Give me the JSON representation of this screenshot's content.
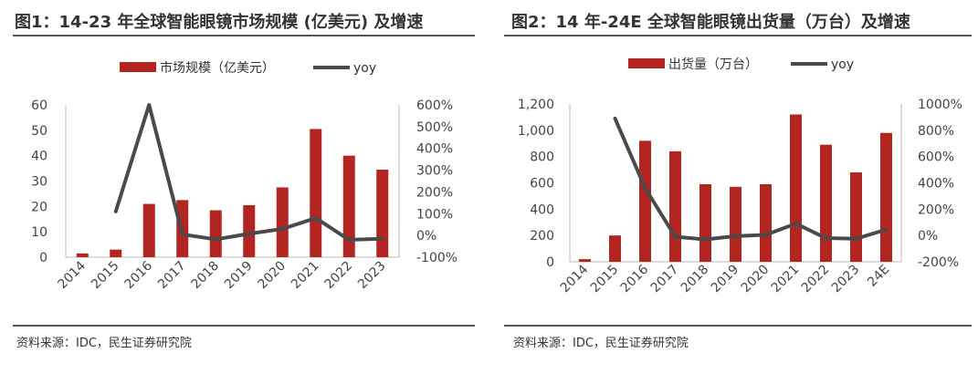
{
  "chart_data": [
    {
      "type": "bar",
      "title": "图1：14-23 年全球智能眼镜市场规模 (亿美元) 及增速",
      "source": "资料来源：IDC，民生证券研究院",
      "categories": [
        "2014",
        "2015",
        "2016",
        "2017",
        "2018",
        "2019",
        "2020",
        "2021",
        "2022",
        "2023"
      ],
      "series": [
        {
          "name": "市场规模（亿美元）",
          "type": "bar",
          "axis": "left",
          "values": [
            1.5,
            3.0,
            21.0,
            22.5,
            18.5,
            20.5,
            27.5,
            50.5,
            40.0,
            34.5
          ]
        },
        {
          "name": "yoy",
          "type": "line",
          "axis": "right",
          "unit": "%",
          "values": [
            null,
            110,
            600,
            5,
            -18,
            8,
            30,
            80,
            -20,
            -15
          ]
        }
      ],
      "ylim_left": [
        0,
        60
      ],
      "yticks_left": [
        "0",
        "10",
        "20",
        "30",
        "40",
        "50",
        "60"
      ],
      "ylim_right": [
        -100,
        600
      ],
      "yticks_right": [
        "-100%",
        "0%",
        "100%",
        "200%",
        "300%",
        "400%",
        "500%",
        "600%"
      ],
      "legend": "top",
      "bar_color": "#b22520",
      "line_color": "#4a4a4a"
    },
    {
      "type": "bar",
      "title": "图2：14 年-24E 全球智能眼镜出货量（万台）及增速",
      "source": "资料来源：IDC，民生证券研究院",
      "categories": [
        "2014",
        "2015",
        "2016",
        "2017",
        "2018",
        "2019",
        "2020",
        "2021",
        "2022",
        "2023",
        "24E"
      ],
      "series": [
        {
          "name": "出货量（万台）",
          "type": "bar",
          "axis": "left",
          "values": [
            20,
            200,
            920,
            840,
            590,
            570,
            590,
            1120,
            890,
            680,
            980
          ]
        },
        {
          "name": "yoy",
          "type": "line",
          "axis": "right",
          "unit": "%",
          "values": [
            null,
            890,
            360,
            -10,
            -30,
            -5,
            5,
            90,
            -20,
            -25,
            45
          ]
        }
      ],
      "ylim_left": [
        0,
        1200
      ],
      "yticks_left": [
        "0",
        "200",
        "400",
        "600",
        "800",
        "1,000",
        "1,200"
      ],
      "ylim_right": [
        -200,
        1000
      ],
      "yticks_right": [
        "-200%",
        "0%",
        "200%",
        "400%",
        "600%",
        "800%",
        "1000%"
      ],
      "legend": "top",
      "bar_color": "#b22520",
      "line_color": "#4a4a4a"
    }
  ]
}
